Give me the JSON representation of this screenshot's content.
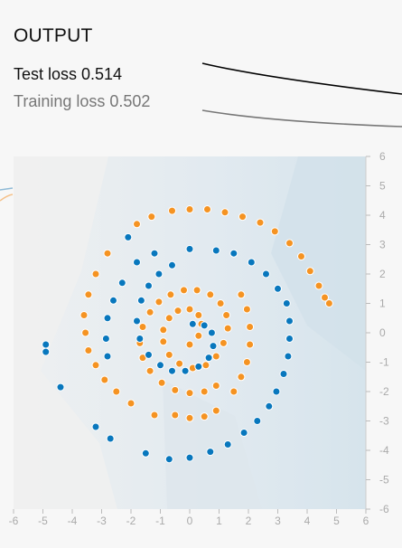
{
  "output": {
    "title": "OUTPUT",
    "test_loss_label": "Test loss 0.514",
    "training_loss_label": "Training loss 0.502"
  },
  "colors": {
    "orange_class": "#f59322",
    "blue_class": "#0877bd",
    "test_curve": "#000000",
    "train_curve": "#777777",
    "axis_text": "#aaaaaa"
  },
  "chart_data": {
    "type": "scatter",
    "title": "",
    "xlabel": "",
    "ylabel": "",
    "xlim": [
      -6,
      6
    ],
    "ylim": [
      -6,
      6
    ],
    "x_ticks": [
      "-6",
      "-5",
      "-4",
      "-3",
      "-2",
      "-1",
      "0",
      "1",
      "2",
      "3",
      "4",
      "5",
      "6"
    ],
    "y_ticks": [
      "6",
      "5",
      "4",
      "3",
      "2",
      "1",
      "0",
      "-1",
      "-2",
      "-3",
      "-4",
      "-5",
      "-6"
    ],
    "grid": false,
    "background": "decision-boundary heatmap (mostly near-neutral)",
    "series": [
      {
        "class": "orange",
        "points": [
          [
            0.0,
            -0.4
          ],
          [
            0.3,
            -0.1
          ],
          [
            0.4,
            0.3
          ],
          [
            0.3,
            0.6
          ],
          [
            0.0,
            0.8
          ],
          [
            -0.4,
            0.75
          ],
          [
            -0.7,
            0.5
          ],
          [
            -0.9,
            0.1
          ],
          [
            -0.9,
            -0.3
          ],
          [
            -0.7,
            -0.75
          ],
          [
            -0.35,
            -1.05
          ],
          [
            0.1,
            -1.2
          ],
          [
            0.55,
            -1.1
          ],
          [
            0.9,
            -0.8
          ],
          [
            1.15,
            -0.35
          ],
          [
            1.3,
            0.15
          ],
          [
            1.25,
            0.6
          ],
          [
            1.05,
            1.0
          ],
          [
            0.7,
            1.3
          ],
          [
            0.25,
            1.45
          ],
          [
            -0.2,
            1.45
          ],
          [
            -0.65,
            1.3
          ],
          [
            -1.05,
            1.05
          ],
          [
            -1.35,
            0.7
          ],
          [
            -1.6,
            0.2
          ],
          [
            -1.7,
            -0.35
          ],
          [
            -1.6,
            -0.85
          ],
          [
            -1.35,
            -1.3
          ],
          [
            -0.95,
            -1.7
          ],
          [
            -0.5,
            -1.95
          ],
          [
            0.0,
            -2.05
          ],
          [
            0.5,
            -2.0
          ],
          [
            0.9,
            -1.8
          ],
          [
            1.5,
            -2.0
          ],
          [
            1.75,
            -1.5
          ],
          [
            1.95,
            -1.0
          ],
          [
            2.05,
            -0.4
          ],
          [
            2.05,
            0.2
          ],
          [
            1.95,
            0.8
          ],
          [
            1.75,
            1.3
          ],
          [
            -0.5,
            -2.8
          ],
          [
            0.0,
            -2.9
          ],
          [
            0.5,
            -2.85
          ],
          [
            0.9,
            -2.65
          ],
          [
            -1.2,
            -2.8
          ],
          [
            -2.0,
            -2.4
          ],
          [
            -2.5,
            -2.0
          ],
          [
            -2.9,
            -1.6
          ],
          [
            -3.2,
            -1.1
          ],
          [
            -3.45,
            -0.6
          ],
          [
            -3.55,
            0.0
          ],
          [
            -3.6,
            0.6
          ],
          [
            -3.45,
            1.3
          ],
          [
            -3.2,
            2.0
          ],
          [
            -2.8,
            2.7
          ],
          [
            -1.8,
            3.7
          ],
          [
            -1.3,
            3.95
          ],
          [
            -0.6,
            4.15
          ],
          [
            0.0,
            4.2
          ],
          [
            0.6,
            4.2
          ],
          [
            1.2,
            4.1
          ],
          [
            1.8,
            3.95
          ],
          [
            2.4,
            3.75
          ],
          [
            2.9,
            3.45
          ],
          [
            3.4,
            3.05
          ],
          [
            3.8,
            2.6
          ],
          [
            4.1,
            2.1
          ],
          [
            4.4,
            1.6
          ],
          [
            4.6,
            1.2
          ],
          [
            4.75,
            1.0
          ]
        ]
      },
      {
        "class": "blue",
        "points": [
          [
            0.1,
            0.3
          ],
          [
            0.5,
            0.25
          ],
          [
            0.75,
            0.0
          ],
          [
            0.8,
            -0.45
          ],
          [
            0.65,
            -0.85
          ],
          [
            0.3,
            -1.15
          ],
          [
            -0.15,
            -1.3
          ],
          [
            -0.6,
            -1.3
          ],
          [
            -1.0,
            -1.1
          ],
          [
            -1.4,
            -0.75
          ],
          [
            -1.7,
            -0.2
          ],
          [
            -1.8,
            0.4
          ],
          [
            -1.65,
            1.1
          ],
          [
            -1.4,
            1.6
          ],
          [
            -1.05,
            2.0
          ],
          [
            -0.6,
            2.3
          ],
          [
            0.0,
            2.85
          ],
          [
            0.9,
            2.8
          ],
          [
            1.5,
            2.7
          ],
          [
            2.1,
            2.4
          ],
          [
            2.6,
            2.0
          ],
          [
            3.0,
            1.5
          ],
          [
            3.3,
            1.0
          ],
          [
            3.4,
            0.4
          ],
          [
            3.4,
            -0.2
          ],
          [
            3.35,
            -0.8
          ],
          [
            3.2,
            -1.4
          ],
          [
            2.95,
            -2.0
          ],
          [
            2.7,
            -2.5
          ],
          [
            2.3,
            -3.0
          ],
          [
            1.85,
            -3.4
          ],
          [
            1.3,
            -3.8
          ],
          [
            0.7,
            -4.05
          ],
          [
            0.0,
            -4.25
          ],
          [
            -0.7,
            -4.3
          ],
          [
            -1.5,
            -4.1
          ],
          [
            -2.7,
            -3.6
          ],
          [
            -3.2,
            -3.2
          ],
          [
            -2.1,
            3.25
          ],
          [
            -2.8,
            -0.8
          ],
          [
            -2.85,
            -0.2
          ],
          [
            -2.8,
            0.5
          ],
          [
            -2.6,
            1.1
          ],
          [
            -2.3,
            1.7
          ],
          [
            -1.8,
            2.4
          ],
          [
            -1.2,
            2.7
          ],
          [
            -4.9,
            -0.4
          ],
          [
            -4.9,
            -0.65
          ],
          [
            -4.4,
            -1.85
          ]
        ]
      }
    ]
  }
}
